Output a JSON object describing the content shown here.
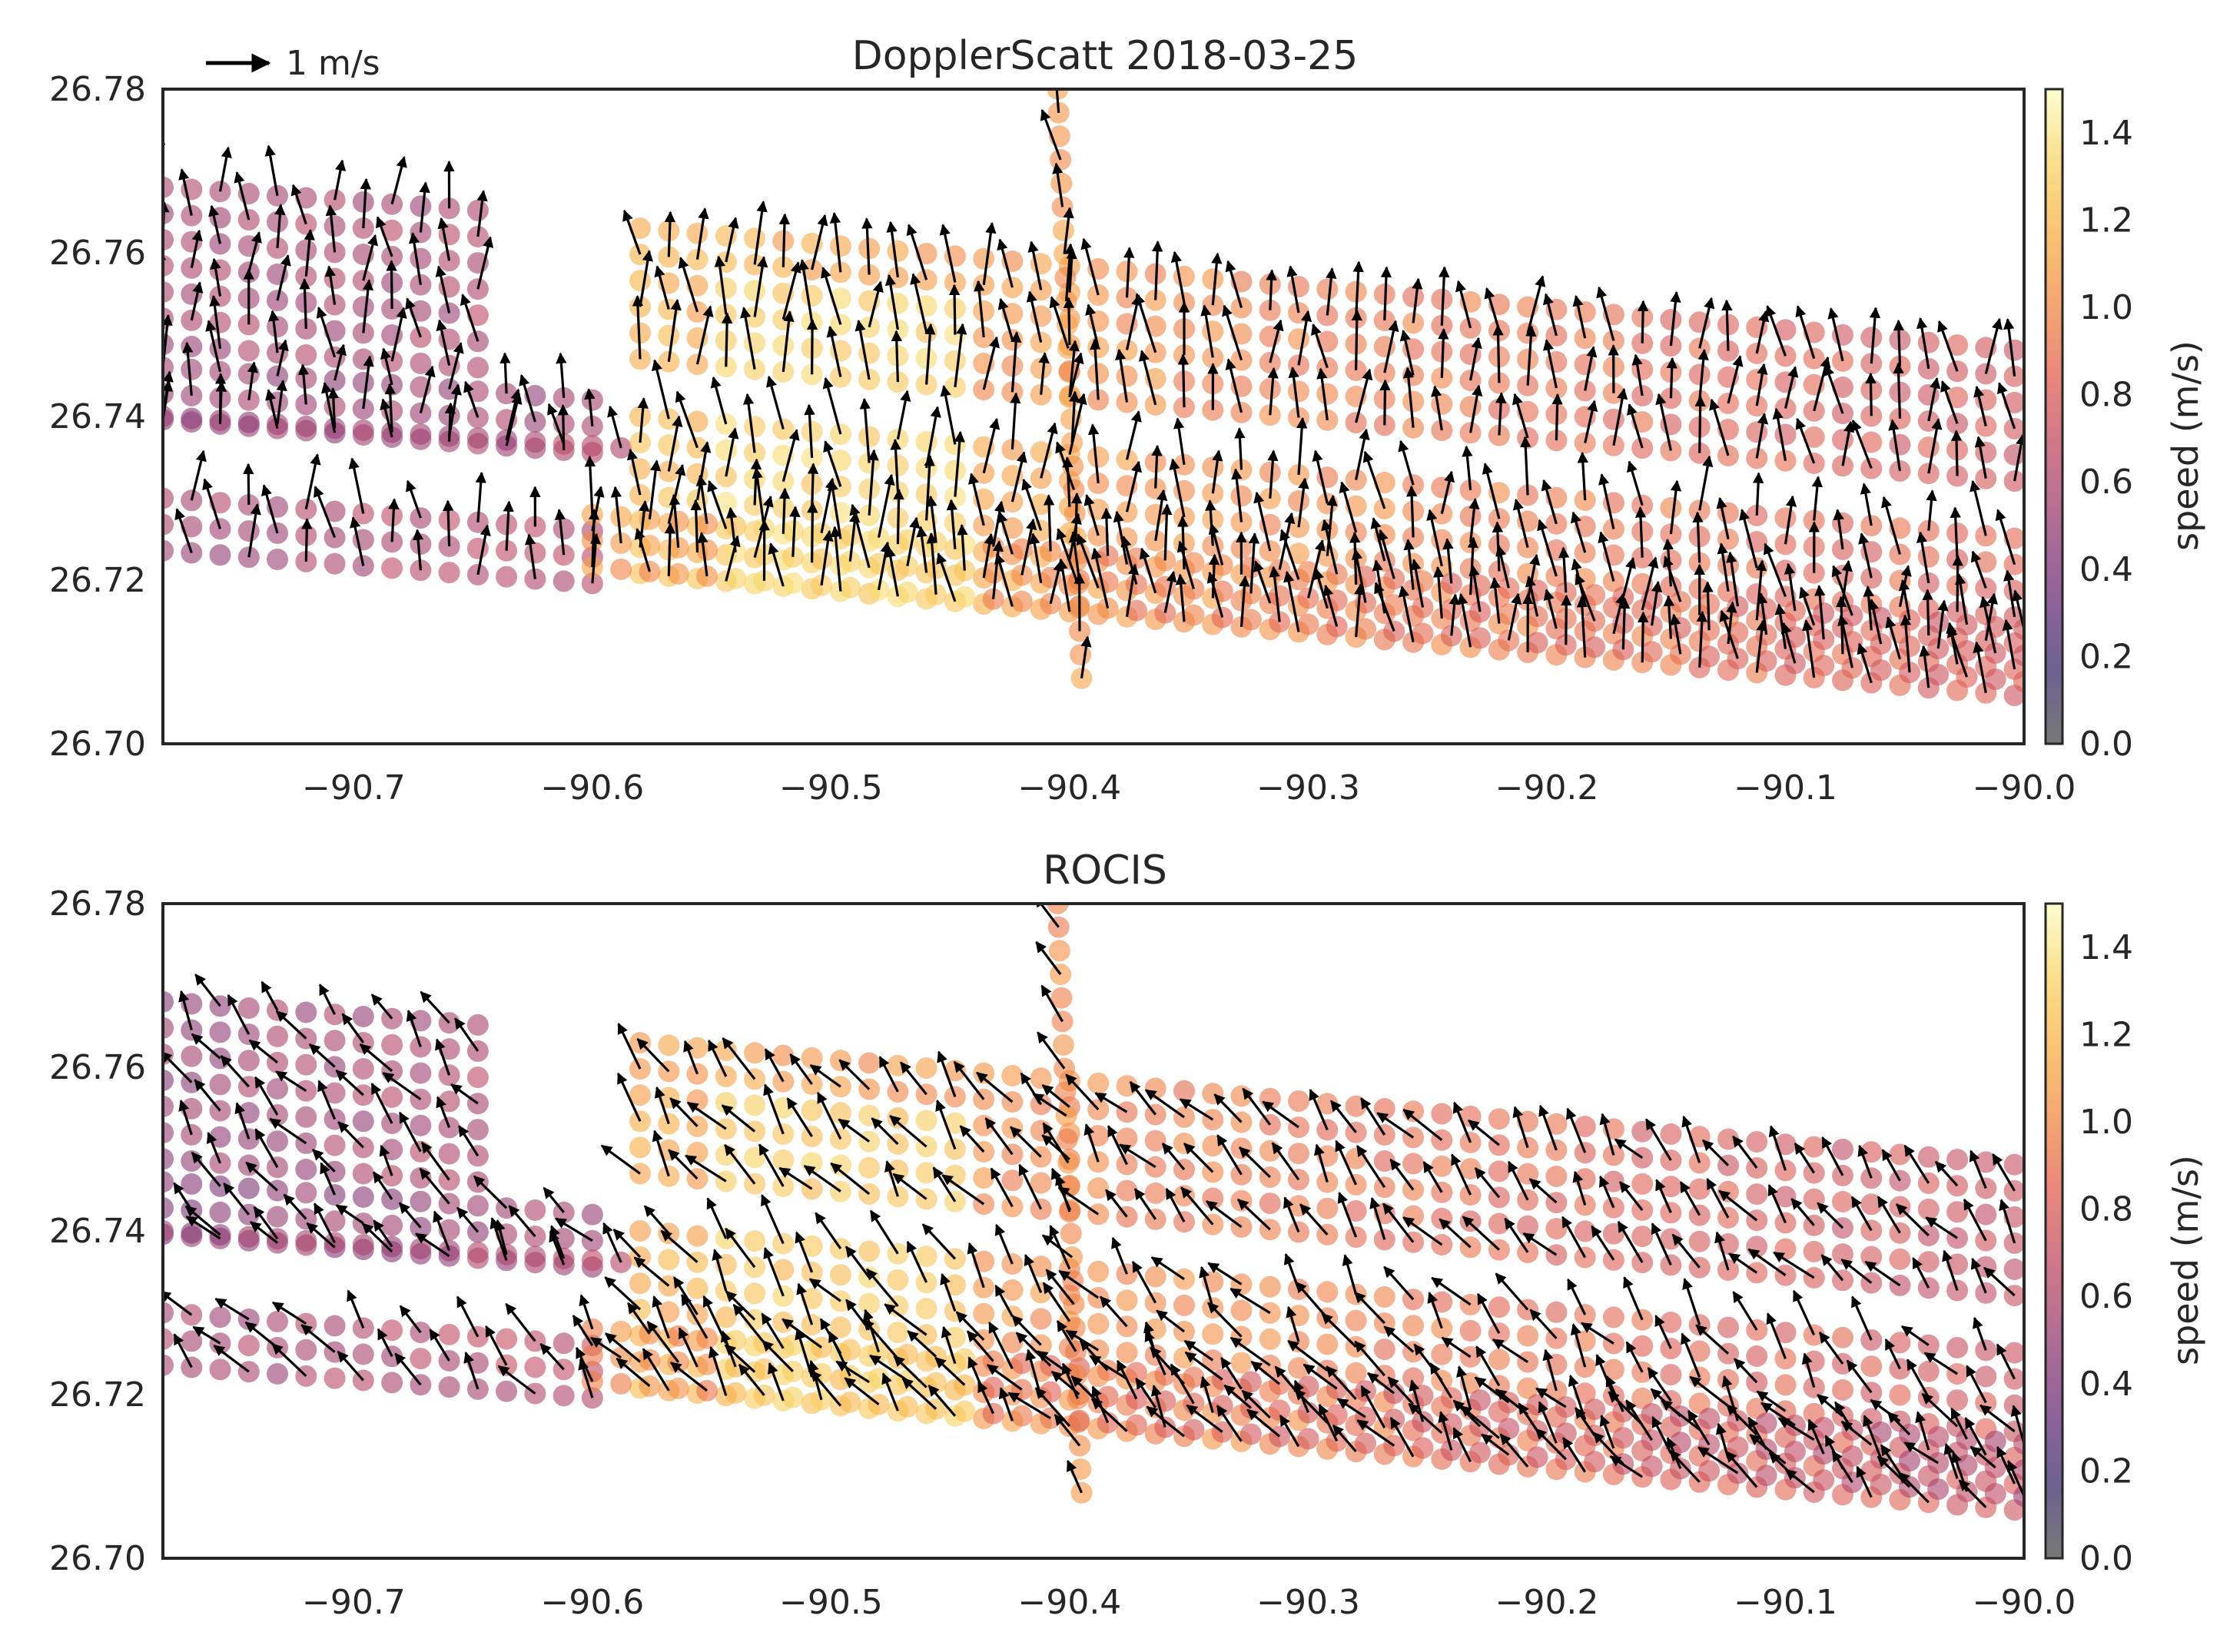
{
  "figure": {
    "scale_arrow_label": "1 m/s"
  },
  "colormap": {
    "name": "inferno",
    "stops": [
      "#4b4b4b",
      "#3b2b6b",
      "#6a2e77",
      "#943b72",
      "#bd4863",
      "#df5e50",
      "#f28641",
      "#f9ae42",
      "#f7d563",
      "#fcfdbf"
    ],
    "point_alpha": 0.6
  },
  "chart_data": [
    {
      "type": "scatter",
      "title": "DopplerScatt  2018-03-25",
      "xlim": [
        -90.78,
        -90.0
      ],
      "ylim": [
        26.7,
        26.78
      ],
      "xticks": [
        -90.7,
        -90.6,
        -90.5,
        -90.4,
        -90.3,
        -90.2,
        -90.1,
        -90.0
      ],
      "xtick_labels": [
        "−90.7",
        "−90.6",
        "−90.5",
        "−90.4",
        "−90.3",
        "−90.2",
        "−90.1",
        "−90.0"
      ],
      "yticks": [
        26.7,
        26.72,
        26.74,
        26.76,
        26.78
      ],
      "ytick_labels": [
        "26.70",
        "26.72",
        "26.74",
        "26.76",
        "26.78"
      ],
      "colorbar": {
        "label": "speed (m/s)",
        "range": [
          0.0,
          1.5
        ],
        "ticks": [
          0.0,
          0.2,
          0.4,
          0.6,
          0.8,
          1.0,
          1.2,
          1.4
        ],
        "tick_labels": [
          "0.0",
          "0.2",
          "0.4",
          "0.6",
          "0.8",
          "1.0",
          "1.2",
          "1.4"
        ]
      },
      "swaths": [
        {
          "lon": [
            -90.78,
            -90.64
          ],
          "lat_top_start": 26.768,
          "lat_top_end": 26.765,
          "width": 0.022,
          "speed_start": 0.55,
          "speed_end": 0.6
        },
        {
          "lon": [
            -90.78,
            -90.6
          ],
          "lat_top_start": 26.746,
          "lat_top_end": 26.742,
          "width": 0.009,
          "speed_start": 0.5,
          "speed_end": 0.55
        },
        {
          "lon": [
            -90.78,
            -90.58
          ],
          "lat_top_start": 26.74,
          "lat_top_end": 26.736,
          "width": 0.004,
          "speed_start": 0.5,
          "speed_end": 0.6
        },
        {
          "lon": [
            -90.78,
            -90.6
          ],
          "lat_top_start": 26.73,
          "lat_top_end": 26.726,
          "width": 0.011,
          "speed_start": 0.55,
          "speed_end": 0.65
        },
        {
          "lon": [
            -90.58,
            -90.0
          ],
          "lat_top_start": 26.763,
          "lat_top_end": 26.748,
          "width": 0.02,
          "speed_start": 1.15,
          "speed_end": 0.75
        },
        {
          "lon": [
            -90.58,
            -90.0
          ],
          "lat_top_start": 26.74,
          "lat_top_end": 26.725,
          "width": 0.022,
          "speed_start": 1.2,
          "speed_end": 0.8
        },
        {
          "lon": [
            -90.6,
            -90.0
          ],
          "lat_top_start": 26.728,
          "lat_top_end": 26.714,
          "width": 0.011,
          "speed_start": 1.05,
          "speed_end": 0.75
        }
      ],
      "yellow_core": {
        "lon": [
          -90.55,
          -90.44
        ],
        "lat": [
          26.712,
          26.756
        ],
        "speed": 1.3
      },
      "transect": {
        "lon_top": -90.405,
        "lon_bottom": -90.395,
        "lat_top": 26.78,
        "lat_bottom": 26.708,
        "speed": 1.05
      },
      "vectors": {
        "mean_u": -0.05,
        "mean_v": 0.9,
        "spread_deg": 18,
        "unit": "m/s"
      }
    },
    {
      "type": "scatter",
      "title": "ROCIS",
      "xlim": [
        -90.78,
        -90.0
      ],
      "ylim": [
        26.7,
        26.78
      ],
      "xticks": [
        -90.7,
        -90.6,
        -90.5,
        -90.4,
        -90.3,
        -90.2,
        -90.1,
        -90.0
      ],
      "xtick_labels": [
        "−90.7",
        "−90.6",
        "−90.5",
        "−90.4",
        "−90.3",
        "−90.2",
        "−90.1",
        "−90.0"
      ],
      "yticks": [
        26.7,
        26.72,
        26.74,
        26.76,
        26.78
      ],
      "ytick_labels": [
        "26.70",
        "26.72",
        "26.74",
        "26.76",
        "26.78"
      ],
      "colorbar": {
        "label": "speed (m/s)",
        "range": [
          0.0,
          1.5
        ],
        "ticks": [
          0.0,
          0.2,
          0.4,
          0.6,
          0.8,
          1.0,
          1.2,
          1.4
        ],
        "tick_labels": [
          "0.0",
          "0.2",
          "0.4",
          "0.6",
          "0.8",
          "1.0",
          "1.2",
          "1.4"
        ]
      },
      "swaths": [
        {
          "lon": [
            -90.78,
            -90.64
          ],
          "lat_top_start": 26.768,
          "lat_top_end": 26.765,
          "width": 0.022,
          "speed_start": 0.5,
          "speed_end": 0.6
        },
        {
          "lon": [
            -90.78,
            -90.6
          ],
          "lat_top_start": 26.746,
          "lat_top_end": 26.742,
          "width": 0.009,
          "speed_start": 0.45,
          "speed_end": 0.55
        },
        {
          "lon": [
            -90.78,
            -90.58
          ],
          "lat_top_start": 26.74,
          "lat_top_end": 26.736,
          "width": 0.004,
          "speed_start": 0.5,
          "speed_end": 0.6
        },
        {
          "lon": [
            -90.78,
            -90.6
          ],
          "lat_top_start": 26.73,
          "lat_top_end": 26.726,
          "width": 0.011,
          "speed_start": 0.55,
          "speed_end": 0.65
        },
        {
          "lon": [
            -90.58,
            -90.0
          ],
          "lat_top_start": 26.763,
          "lat_top_end": 26.748,
          "width": 0.02,
          "speed_start": 1.1,
          "speed_end": 0.7
        },
        {
          "lon": [
            -90.58,
            -90.0
          ],
          "lat_top_start": 26.74,
          "lat_top_end": 26.725,
          "width": 0.022,
          "speed_start": 1.15,
          "speed_end": 0.75
        },
        {
          "lon": [
            -90.6,
            -90.0
          ],
          "lat_top_start": 26.728,
          "lat_top_end": 26.714,
          "width": 0.011,
          "speed_start": 1.0,
          "speed_end": 0.6
        }
      ],
      "yellow_core": {
        "lon": [
          -90.55,
          -90.44
        ],
        "lat": [
          26.712,
          26.756
        ],
        "speed": 1.25
      },
      "transect": {
        "lon_top": -90.405,
        "lon_bottom": -90.395,
        "lat_top": 26.78,
        "lat_bottom": 26.708,
        "speed": 1.0
      },
      "vectors": {
        "mean_u": -0.45,
        "mean_v": 0.6,
        "spread_deg": 22,
        "unit": "m/s"
      }
    }
  ]
}
